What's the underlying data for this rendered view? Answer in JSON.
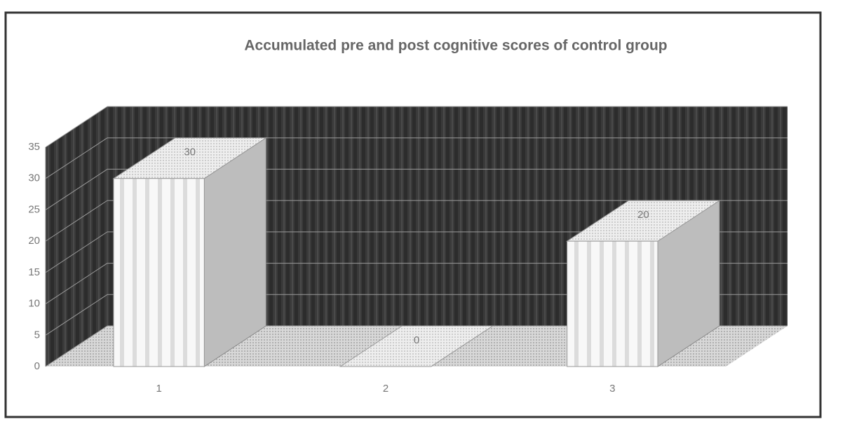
{
  "chart_data": {
    "type": "bar3d",
    "title": "Accumulated pre and post cognitive scores of control group",
    "categories": [
      "1",
      "2",
      "3"
    ],
    "values": [
      30,
      0,
      20
    ],
    "color": "#f4f4f4",
    "ylim": [
      0,
      35
    ],
    "yticks": [
      0,
      5,
      10,
      15,
      20,
      25,
      30,
      35
    ],
    "grid": true
  }
}
